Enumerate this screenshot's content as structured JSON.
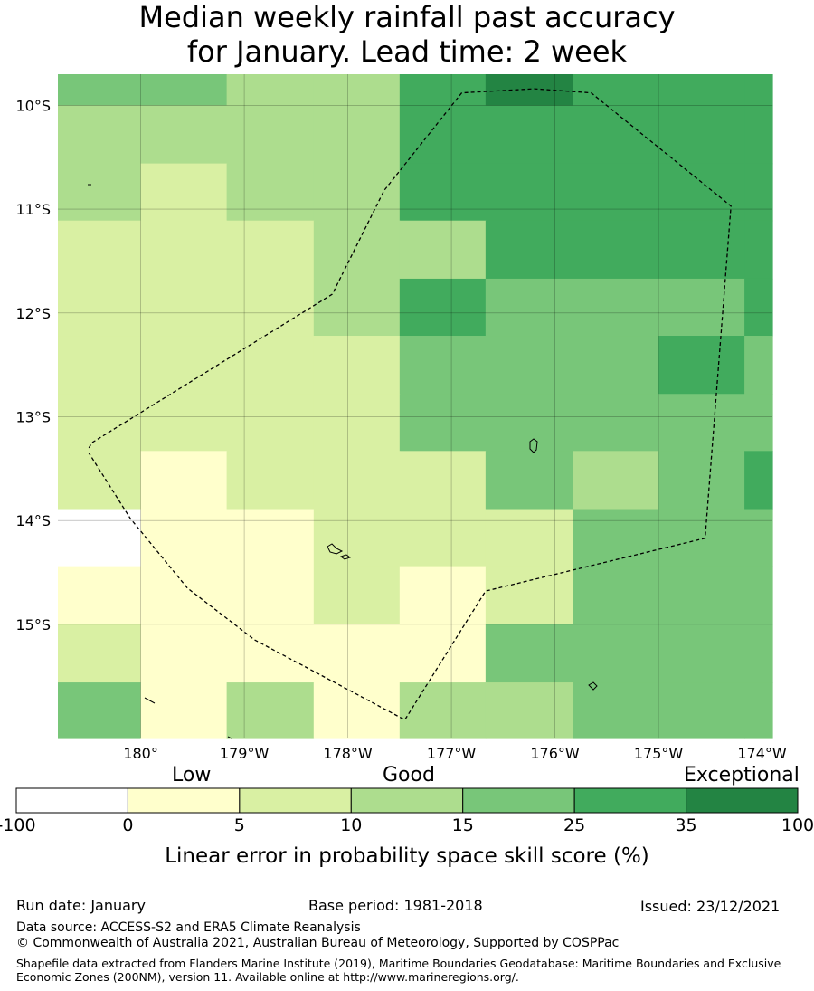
{
  "title": {
    "line1": "Median weekly rainfall past accuracy",
    "line2": "for January. Lead time: 2 week"
  },
  "map": {
    "lat_labels": [
      "10°S",
      "11°S",
      "12°S",
      "13°S",
      "14°S",
      "15°S"
    ],
    "lon_labels": [
      "180°",
      "179°W",
      "178°W",
      "177°W",
      "176°W",
      "175°W",
      "174°W"
    ],
    "extent": {
      "lon_west": -180.8,
      "lon_east": -173.9,
      "lat_north": -9.7,
      "lat_south": -16.1
    },
    "grid": {
      "lon_edges": [
        -180.8,
        -180.0,
        -179.17,
        -178.33,
        -177.5,
        -176.67,
        -175.83,
        -175.0,
        -174.17,
        -173.9
      ],
      "lat_edges": [
        -9.7,
        -10.0,
        -10.56,
        -11.11,
        -11.67,
        -12.22,
        -12.78,
        -13.33,
        -13.89,
        -14.44,
        -15.0,
        -15.56,
        -16.1
      ],
      "rows": [
        [
          4,
          4,
          3,
          3,
          5,
          6,
          5,
          5,
          5
        ],
        [
          3,
          3,
          3,
          3,
          5,
          5,
          5,
          5,
          5
        ],
        [
          3,
          2,
          3,
          3,
          5,
          5,
          5,
          5,
          5
        ],
        [
          2,
          2,
          2,
          3,
          3,
          5,
          5,
          5,
          5
        ],
        [
          2,
          2,
          2,
          3,
          5,
          4,
          4,
          4,
          5
        ],
        [
          2,
          2,
          2,
          2,
          4,
          4,
          4,
          5,
          4
        ],
        [
          2,
          2,
          2,
          2,
          4,
          4,
          4,
          4,
          4
        ],
        [
          2,
          1,
          2,
          2,
          2,
          4,
          3,
          4,
          5
        ],
        [
          0,
          1,
          1,
          2,
          2,
          2,
          4,
          4,
          4
        ],
        [
          1,
          1,
          1,
          2,
          1,
          2,
          4,
          4,
          4
        ],
        [
          2,
          1,
          1,
          1,
          1,
          4,
          4,
          4,
          4
        ],
        [
          4,
          1,
          3,
          1,
          3,
          3,
          4,
          4,
          4
        ]
      ]
    },
    "eez_boundary": [
      [
        -180.5,
        -13.3
      ],
      [
        -180.47,
        -13.25
      ],
      [
        -178.15,
        -11.82
      ],
      [
        -177.65,
        -10.82
      ],
      [
        -176.9,
        -9.88
      ],
      [
        -176.2,
        -9.84
      ],
      [
        -175.65,
        -9.88
      ],
      [
        -174.3,
        -10.97
      ],
      [
        -174.55,
        -14.17
      ],
      [
        -176.67,
        -14.68
      ],
      [
        -177.45,
        -15.92
      ],
      [
        -178.9,
        -15.15
      ],
      [
        -179.55,
        -14.65
      ],
      [
        -180.1,
        -13.98
      ],
      [
        -180.5,
        -13.35
      ]
    ]
  },
  "legend": {
    "words": [
      "Low",
      "Good",
      "Exceptional"
    ],
    "ticks": [
      "-100",
      "0",
      "5",
      "10",
      "15",
      "25",
      "35",
      "100"
    ],
    "colors": [
      "#ffffff",
      "#ffffcc",
      "#d9f0a3",
      "#addd8e",
      "#78c679",
      "#41ab5d",
      "#238443"
    ],
    "title": "Linear error in probability space skill score (%)"
  },
  "footer": {
    "run_date": "Run date: January",
    "base_period": "Base period: 1981-2018",
    "issued": "Issued: 23/12/2021",
    "data_source": "Data source: ACCESS-S2 and ERA5 Climate Reanalysis",
    "copyright": "© Commonwealth of Australia 2021, Australian Bureau of Meteorology, Supported by COSPPac",
    "shapefile": "Shapefile data extracted from Flanders Marine Institute (2019), Maritime Boundaries Geodatabase: Maritime Boundaries and Exclusive Economic Zones (200NM), version 11. Available online at http://www.marineregions.org/."
  }
}
